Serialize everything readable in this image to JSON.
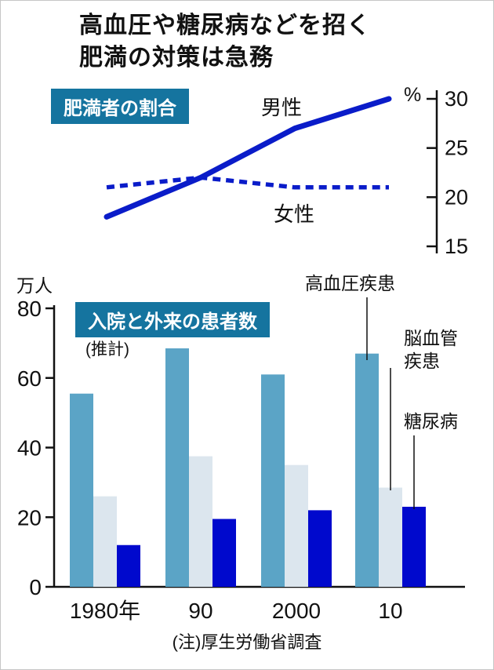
{
  "page": {
    "title_line1": "高血圧や糖尿病などを招く",
    "title_line2": "肥満の対策は急務",
    "note": "(注)厚生労働省調査"
  },
  "colors": {
    "header_bg": "#15749f",
    "line_blue": "#0a1cc9",
    "bar_series": [
      "#5ba4c6",
      "#dce6ee",
      "#0009cd"
    ],
    "axis": "#111111"
  },
  "chart_data": [
    {
      "type": "line",
      "title": "肥満者の割合",
      "unit": "%",
      "x": [
        "1980",
        "90",
        "2000",
        "10"
      ],
      "series": [
        {
          "name": "男性",
          "style": "solid",
          "values": [
            18,
            22,
            27,
            30
          ]
        },
        {
          "name": "女性",
          "style": "dashed",
          "values": [
            21,
            22,
            21,
            21
          ]
        }
      ],
      "ylim": [
        15,
        30
      ],
      "yticks": [
        30,
        25,
        20,
        15
      ],
      "legend_position": "inline-labels",
      "grid": false
    },
    {
      "type": "bar",
      "title": "入院と外来の患者数",
      "subtitle": "(推計)",
      "unit": "万人",
      "categories": [
        "1980年",
        "90",
        "2000",
        "10"
      ],
      "series": [
        {
          "name": "高血圧疾患",
          "values": [
            55.5,
            68.5,
            61,
            67
          ]
        },
        {
          "name": "脳血管疾患",
          "values": [
            26,
            37.5,
            35,
            28.5
          ]
        },
        {
          "name": "糖尿病",
          "values": [
            12,
            19.5,
            22,
            23
          ]
        }
      ],
      "ylim": [
        0,
        80
      ],
      "yticks": [
        80,
        60,
        40,
        20,
        0
      ],
      "legend_position": "right-callouts",
      "grid": false
    }
  ]
}
